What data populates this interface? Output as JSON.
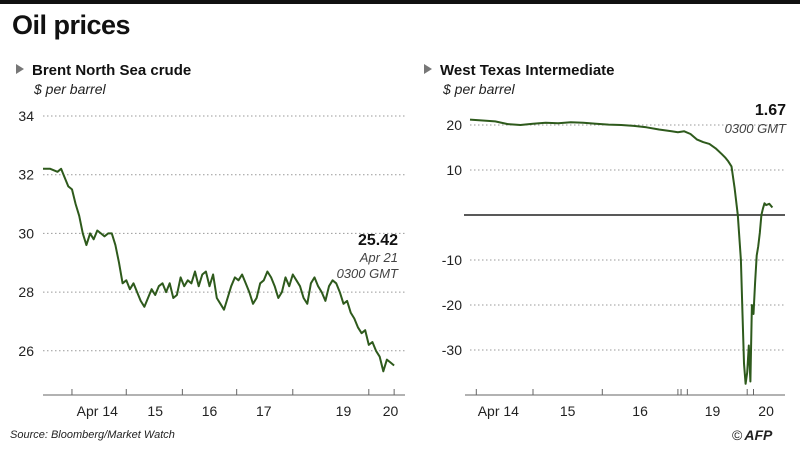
{
  "title": "Oil prices",
  "source": "Source: Bloomberg/Market Watch",
  "logo": {
    "copyright": "©",
    "text": "AFP"
  },
  "colors": {
    "line": "#2e5a1c",
    "grid": "#999999",
    "zero": "#222222"
  },
  "chart_data": [
    {
      "type": "line",
      "title": "Brent North Sea crude",
      "ylabel": "$ per barrel",
      "xlabel": "",
      "ylim": [
        24.8,
        34
      ],
      "xlim": [
        0,
        100
      ],
      "yticks": [
        34,
        32,
        30,
        28,
        26
      ],
      "x_tick_labels": [
        {
          "label": "Apr 14",
          "x": 15
        },
        {
          "label": "15",
          "x": 31
        },
        {
          "label": "16",
          "x": 46
        },
        {
          "label": "17",
          "x": 61
        },
        {
          "label": "19",
          "x": 83
        },
        {
          "label": "20",
          "x": 96
        }
      ],
      "x_tick_marks": [
        8,
        23,
        38.5,
        53.5,
        69,
        90,
        97
      ],
      "annotation": {
        "value": "25.42",
        "date": "Apr 21",
        "time": "0300 GMT"
      },
      "series": [
        {
          "x": [
            0,
            2,
            4,
            5,
            6,
            7,
            8,
            9,
            10,
            11,
            12,
            13,
            14,
            15,
            16,
            17,
            18,
            19,
            20,
            21,
            22,
            23,
            24,
            25,
            26,
            27,
            28,
            29,
            30,
            31,
            32,
            33,
            34,
            35,
            36,
            37,
            38,
            39,
            40,
            41,
            42,
            43,
            44,
            45,
            46,
            47,
            48,
            49,
            50,
            51,
            52,
            53,
            54,
            55,
            56,
            57,
            58,
            59,
            60,
            61,
            62,
            63,
            64,
            65,
            66,
            67,
            68,
            69,
            70,
            71,
            72,
            73,
            74,
            75,
            76,
            77,
            78,
            79,
            80,
            81,
            82,
            83,
            84,
            85,
            86,
            87,
            88,
            89,
            90,
            91,
            92,
            93,
            94,
            95,
            96,
            97
          ],
          "y": [
            32.2,
            32.2,
            32.1,
            32.2,
            31.9,
            31.6,
            31.5,
            31.0,
            30.6,
            30.0,
            29.6,
            30.0,
            29.8,
            30.1,
            30.0,
            29.9,
            30.0,
            30.0,
            29.6,
            29.0,
            28.3,
            28.4,
            28.1,
            28.3,
            28.0,
            27.7,
            27.5,
            27.8,
            28.1,
            27.9,
            28.2,
            28.3,
            28.0,
            28.3,
            27.8,
            27.9,
            28.5,
            28.2,
            28.4,
            28.3,
            28.7,
            28.2,
            28.6,
            28.7,
            28.2,
            28.6,
            27.8,
            27.6,
            27.4,
            27.8,
            28.2,
            28.5,
            28.4,
            28.6,
            28.3,
            28.0,
            27.6,
            27.8,
            28.3,
            28.4,
            28.7,
            28.5,
            28.2,
            27.8,
            28.0,
            28.5,
            28.2,
            28.6,
            28.4,
            28.2,
            27.8,
            27.6,
            28.3,
            28.5,
            28.2,
            28.0,
            27.7,
            28.2,
            28.4,
            28.3,
            28.0,
            27.6,
            27.7,
            27.3,
            27.1,
            26.8,
            26.6,
            26.7,
            26.2,
            26.3,
            26.0,
            25.8,
            25.3,
            25.7,
            25.6,
            25.5
          ]
        }
      ]
    },
    {
      "type": "line",
      "title": "West Texas Intermediate",
      "ylabel": "$ per barrel",
      "xlabel": "",
      "ylim": [
        -38,
        22
      ],
      "xlim": [
        0,
        100
      ],
      "yticks": [
        20,
        10,
        -10,
        -20,
        -30
      ],
      "zero_line": 0,
      "x_tick_labels": [
        {
          "label": "Apr 14",
          "x": 9
        },
        {
          "label": "15",
          "x": 31
        },
        {
          "label": "16",
          "x": 54
        },
        {
          "label": "19",
          "x": 77
        },
        {
          "label": "20",
          "x": 94
        }
      ],
      "x_tick_marks": [
        2,
        20,
        42,
        66,
        67,
        69,
        88,
        90
      ],
      "annotation": {
        "value": "1.67",
        "time": "0300 GMT"
      },
      "series": [
        {
          "x": [
            0,
            4,
            8,
            12,
            16,
            20,
            24,
            28,
            32,
            36,
            40,
            44,
            48,
            52,
            56,
            60,
            64,
            66,
            68,
            70,
            72,
            74,
            76,
            78,
            80,
            81,
            82,
            83,
            84,
            85,
            86,
            86.5,
            87,
            87.5,
            88,
            88.5,
            89,
            89.5,
            90,
            90.5,
            91,
            91.5,
            92,
            92.5,
            93,
            93.5,
            94,
            95,
            96
          ],
          "y": [
            21.2,
            21.0,
            20.8,
            20.2,
            20.0,
            20.3,
            20.5,
            20.4,
            20.6,
            20.5,
            20.3,
            20.1,
            20.0,
            19.8,
            19.5,
            19.0,
            18.6,
            18.4,
            18.6,
            18.0,
            16.8,
            16.2,
            15.8,
            14.8,
            13.5,
            12.8,
            11.9,
            10.8,
            6.0,
            0.0,
            -10.0,
            -22.0,
            -33.0,
            -37.5,
            -35.0,
            -29.0,
            -37.0,
            -20.0,
            -22.0,
            -15.0,
            -9.0,
            -7.0,
            -4.0,
            0.0,
            1.5,
            2.6,
            2.2,
            2.5,
            1.67
          ]
        }
      ]
    }
  ]
}
